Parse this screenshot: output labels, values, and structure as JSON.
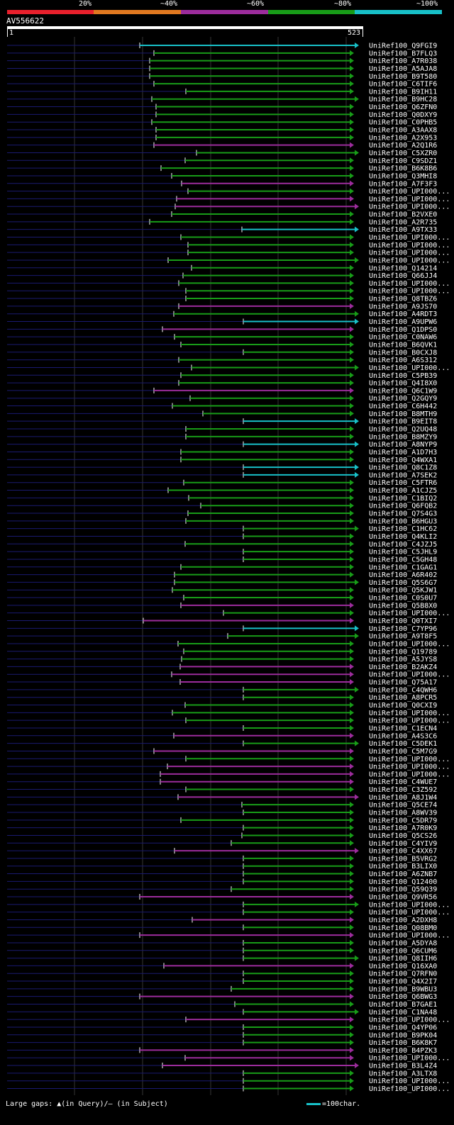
{
  "scale": {
    "labels": [
      "20%",
      "~40%",
      "~60%",
      "~80%",
      "~100%"
    ],
    "colors": [
      "#e8202c",
      "#e07820",
      "#9c2c9c",
      "#189c18",
      "#18c0c8"
    ]
  },
  "query": {
    "id": "AV556622",
    "start": "1",
    "end": "523"
  },
  "footer": {
    "gaps_text": "Large gaps: ▲(in Query)/– (in Subject)",
    "legend_text": "=100char."
  },
  "hits": [
    {
      "name": "UniRef100_Q9FGI9",
      "c": 4
    },
    {
      "name": "UniRef100_B7FLQ3",
      "c": 3
    },
    {
      "name": "UniRef100_A7R038",
      "c": 3
    },
    {
      "name": "UniRef100_A5AJA8",
      "c": 3
    },
    {
      "name": "UniRef100_B9T580",
      "c": 3
    },
    {
      "name": "UniRef100_C6TIF6",
      "c": 3
    },
    {
      "name": "UniRef100_B9IH11",
      "c": 3
    },
    {
      "name": "UniRef100_B9HC28",
      "c": 3
    },
    {
      "name": "UniRef100_Q6ZFN0",
      "c": 3
    },
    {
      "name": "UniRef100_Q0DXY9",
      "c": 3
    },
    {
      "name": "UniRef100_C0PHB5",
      "c": 3
    },
    {
      "name": "UniRef100_A3AAX8",
      "c": 3
    },
    {
      "name": "UniRef100_A2X953",
      "c": 3
    },
    {
      "name": "UniRef100_A2Q1R6",
      "c": 2
    },
    {
      "name": "UniRef100_C5XZR0",
      "c": 3
    },
    {
      "name": "UniRef100_C9SDZ1",
      "c": 3
    },
    {
      "name": "UniRef100_B6K8B6",
      "c": 3
    },
    {
      "name": "UniRef100_Q3MHI8",
      "c": 3
    },
    {
      "name": "UniRef100_A7F3F3",
      "c": 2
    },
    {
      "name": "UniRef100_UPI000...",
      "c": 3
    },
    {
      "name": "UniRef100_UPI000...",
      "c": 2
    },
    {
      "name": "UniRef100_UPI000...",
      "c": 2
    },
    {
      "name": "UniRef100_B2VXE0",
      "c": 3
    },
    {
      "name": "UniRef100_A2R735",
      "c": 3
    },
    {
      "name": "UniRef100_A9TX33",
      "c": 4
    },
    {
      "name": "UniRef100_UPI000...",
      "c": 3
    },
    {
      "name": "UniRef100_UPI000...",
      "c": 3
    },
    {
      "name": "UniRef100_UPI000...",
      "c": 3
    },
    {
      "name": "UniRef100_UPI000...",
      "c": 3
    },
    {
      "name": "UniRef100_Q14214",
      "c": 3
    },
    {
      "name": "UniRef100_Q66JJ4",
      "c": 3
    },
    {
      "name": "UniRef100_UPI000...",
      "c": 3
    },
    {
      "name": "UniRef100_UPI000...",
      "c": 3
    },
    {
      "name": "UniRef100_Q8TBZ6",
      "c": 3
    },
    {
      "name": "UniRef100_A9JS70",
      "c": 2
    },
    {
      "name": "UniRef100_A4RDT3",
      "c": 3
    },
    {
      "name": "UniRef100_A9UPW6",
      "c": 4
    },
    {
      "name": "UniRef100_Q1DPS0",
      "c": 2
    },
    {
      "name": "UniRef100_C0NAW6",
      "c": 3
    },
    {
      "name": "UniRef100_B6QVK1",
      "c": 3
    },
    {
      "name": "UniRef100_B0CXJ8",
      "c": 3
    },
    {
      "name": "UniRef100_A6S312",
      "c": 3
    },
    {
      "name": "UniRef100_UPI000...",
      "c": 3
    },
    {
      "name": "UniRef100_C5PB39",
      "c": 3
    },
    {
      "name": "UniRef100_Q4I8X0",
      "c": 3
    },
    {
      "name": "UniRef100_Q6C1W9",
      "c": 2
    },
    {
      "name": "UniRef100_Q2GQY9",
      "c": 3
    },
    {
      "name": "UniRef100_C6H442",
      "c": 3
    },
    {
      "name": "UniRef100_B8MTH9",
      "c": 3
    },
    {
      "name": "UniRef100_B9EIT8",
      "c": 4
    },
    {
      "name": "UniRef100_Q2UQ48",
      "c": 3
    },
    {
      "name": "UniRef100_B8MZY9",
      "c": 3
    },
    {
      "name": "UniRef100_A8NYP9",
      "c": 4
    },
    {
      "name": "UniRef100_A1D7H3",
      "c": 3
    },
    {
      "name": "UniRef100_Q4WXA1",
      "c": 3
    },
    {
      "name": "UniRef100_Q8C1Z8",
      "c": 4
    },
    {
      "name": "UniRef100_A7SEK2",
      "c": 4
    },
    {
      "name": "UniRef100_C5FTR6",
      "c": 3
    },
    {
      "name": "UniRef100_A1CJZ5",
      "c": 3
    },
    {
      "name": "UniRef100_C1BIQ2",
      "c": 3
    },
    {
      "name": "UniRef100_Q6FQB2",
      "c": 3
    },
    {
      "name": "UniRef100_Q7S4G3",
      "c": 3
    },
    {
      "name": "UniRef100_B6HGU3",
      "c": 3
    },
    {
      "name": "UniRef100_C1HC62",
      "c": 3
    },
    {
      "name": "UniRef100_Q4KLI2",
      "c": 3
    },
    {
      "name": "UniRef100_C4JZJ5",
      "c": 3
    },
    {
      "name": "UniRef100_C5JHL9",
      "c": 3
    },
    {
      "name": "UniRef100_C5GH48",
      "c": 3
    },
    {
      "name": "UniRef100_C1GAG1",
      "c": 3
    },
    {
      "name": "UniRef100_A6R402",
      "c": 3
    },
    {
      "name": "UniRef100_Q5S6G7",
      "c": 3
    },
    {
      "name": "UniRef100_Q5KJW1",
      "c": 3
    },
    {
      "name": "UniRef100_C0S0U7",
      "c": 3
    },
    {
      "name": "UniRef100_Q5B8X0",
      "c": 2
    },
    {
      "name": "UniRef100_UPI000...",
      "c": 3
    },
    {
      "name": "UniRef100_Q0TXI7",
      "c": 2
    },
    {
      "name": "UniRef100_C7YP96",
      "c": 4
    },
    {
      "name": "UniRef100_A9T8F5",
      "c": 3
    },
    {
      "name": "UniRef100_UPI000...",
      "c": 3
    },
    {
      "name": "UniRef100_Q19789",
      "c": 3
    },
    {
      "name": "UniRef100_A5JYS8",
      "c": 3
    },
    {
      "name": "UniRef100_B2AKZ4",
      "c": 2
    },
    {
      "name": "UniRef100_UPI000...",
      "c": 2
    },
    {
      "name": "UniRef100_Q75A17",
      "c": 2
    },
    {
      "name": "UniRef100_C4QWH6",
      "c": 3
    },
    {
      "name": "UniRef100_A8PCR5",
      "c": 3
    },
    {
      "name": "UniRef100_Q0CXI9",
      "c": 3
    },
    {
      "name": "UniRef100_UPI000...",
      "c": 3
    },
    {
      "name": "UniRef100_UPI000...",
      "c": 3
    },
    {
      "name": "UniRef100_C1ECN4",
      "c": 3
    },
    {
      "name": "UniRef100_A4S3C6",
      "c": 2
    },
    {
      "name": "UniRef100_C5DEK1",
      "c": 3
    },
    {
      "name": "UniRef100_C5M7G9",
      "c": 2
    },
    {
      "name": "UniRef100_UPI000...",
      "c": 3
    },
    {
      "name": "UniRef100_UPI000...",
      "c": 2
    },
    {
      "name": "UniRef100_UPI000...",
      "c": 2
    },
    {
      "name": "UniRef100_C4WUE7",
      "c": 2
    },
    {
      "name": "UniRef100_C3Z592",
      "c": 3
    },
    {
      "name": "UniRef100_A8J1W4",
      "c": 2
    },
    {
      "name": "UniRef100_Q5CE74",
      "c": 3
    },
    {
      "name": "UniRef100_A8WV39",
      "c": 3
    },
    {
      "name": "UniRef100_C5DR79",
      "c": 3
    },
    {
      "name": "UniRef100_A7R0K9",
      "c": 3
    },
    {
      "name": "UniRef100_Q5CS26",
      "c": 3
    },
    {
      "name": "UniRef100_C4YIV9",
      "c": 3
    },
    {
      "name": "UniRef100_C4XX67",
      "c": 2
    },
    {
      "name": "UniRef100_B5VRG2",
      "c": 3
    },
    {
      "name": "UniRef100_B3LIX0",
      "c": 3
    },
    {
      "name": "UniRef100_A6ZNB7",
      "c": 3
    },
    {
      "name": "UniRef100_Q12400",
      "c": 3
    },
    {
      "name": "UniRef100_Q59Q39",
      "c": 3
    },
    {
      "name": "UniRef100_Q9VR56",
      "c": 2
    },
    {
      "name": "UniRef100_UPI000...",
      "c": 3
    },
    {
      "name": "UniRef100_UPI000...",
      "c": 3
    },
    {
      "name": "UniRef100_A2DXH8",
      "c": 2
    },
    {
      "name": "UniRef100_Q08BM0",
      "c": 3
    },
    {
      "name": "UniRef100_UPI000...",
      "c": 2
    },
    {
      "name": "UniRef100_A5DYA8",
      "c": 3
    },
    {
      "name": "UniRef100_Q6CUM6",
      "c": 3
    },
    {
      "name": "UniRef100_Q8IIH6",
      "c": 3
    },
    {
      "name": "UniRef100_Q16XA0",
      "c": 2
    },
    {
      "name": "UniRef100_Q7RFN0",
      "c": 3
    },
    {
      "name": "UniRef100_Q4X2I7",
      "c": 3
    },
    {
      "name": "UniRef100_B9WBU3",
      "c": 3
    },
    {
      "name": "UniRef100_Q6BWG3",
      "c": 2
    },
    {
      "name": "UniRef100_B7GAE1",
      "c": 3
    },
    {
      "name": "UniRef100_C1NA48",
      "c": 3
    },
    {
      "name": "UniRef100_UPI000...",
      "c": 2
    },
    {
      "name": "UniRef100_Q4YP06",
      "c": 3
    },
    {
      "name": "UniRef100_B9PK04",
      "c": 3
    },
    {
      "name": "UniRef100_B6K8K7",
      "c": 3
    },
    {
      "name": "UniRef100_B4PZK3",
      "c": 2
    },
    {
      "name": "UniRef100_UPI000...",
      "c": 2
    },
    {
      "name": "UniRef100_B3L4Z4",
      "c": 2
    },
    {
      "name": "UniRef100_A3LTX8",
      "c": 3
    },
    {
      "name": "UniRef100_UPI000...",
      "c": 3
    },
    {
      "name": "UniRef100_UPI000...",
      "c": 3
    }
  ]
}
